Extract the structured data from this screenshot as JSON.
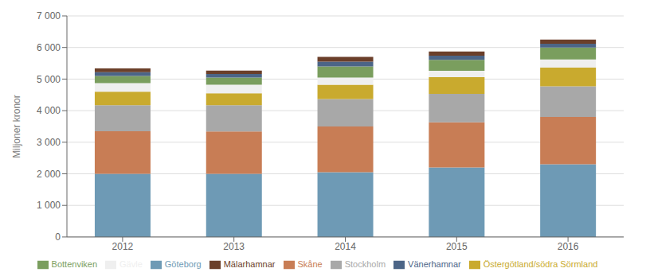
{
  "chart_data": {
    "type": "bar",
    "stacked": true,
    "categories": [
      "2012",
      "2013",
      "2014",
      "2015",
      "2016"
    ],
    "series": [
      {
        "name": "Göteborg",
        "color": "#6e9ab5",
        "values": [
          2000,
          2000,
          2050,
          2200,
          2300
        ]
      },
      {
        "name": "Skåne",
        "color": "#c87d55",
        "values": [
          1350,
          1340,
          1450,
          1430,
          1500
        ]
      },
      {
        "name": "Stockholm",
        "color": "#a8a8a8",
        "values": [
          820,
          830,
          870,
          900,
          970
        ]
      },
      {
        "name": "Östergötland/södra Sörmland",
        "color": "#c9aa2e",
        "values": [
          430,
          380,
          450,
          530,
          590
        ]
      },
      {
        "name": "Gävle",
        "color": "#efefef",
        "values": [
          270,
          270,
          230,
          200,
          260
        ]
      },
      {
        "name": "Bottenviken",
        "color": "#7a9e5e",
        "values": [
          230,
          230,
          350,
          350,
          380
        ]
      },
      {
        "name": "Vänerhamnar",
        "color": "#4c6587",
        "values": [
          120,
          110,
          150,
          130,
          120
        ]
      },
      {
        "name": "Mälarhamnar",
        "color": "#6b3f2a",
        "values": [
          120,
          110,
          150,
          130,
          130
        ]
      }
    ],
    "ylabel": "Miljoner kronor",
    "ylim": [
      0,
      7000
    ],
    "yticks": [
      0,
      {
        "value": 1000,
        "label": "1 000"
      },
      {
        "value": 2000,
        "label": "2 000"
      },
      {
        "value": 3000,
        "label": "3 000"
      },
      {
        "value": 4000,
        "label": "4 000"
      },
      {
        "value": 5000,
        "label": "5 000"
      },
      {
        "value": 6000,
        "label": "6 000"
      },
      {
        "value": 7000,
        "label": "7 000"
      }
    ],
    "grid": true,
    "legend": "bottom"
  }
}
